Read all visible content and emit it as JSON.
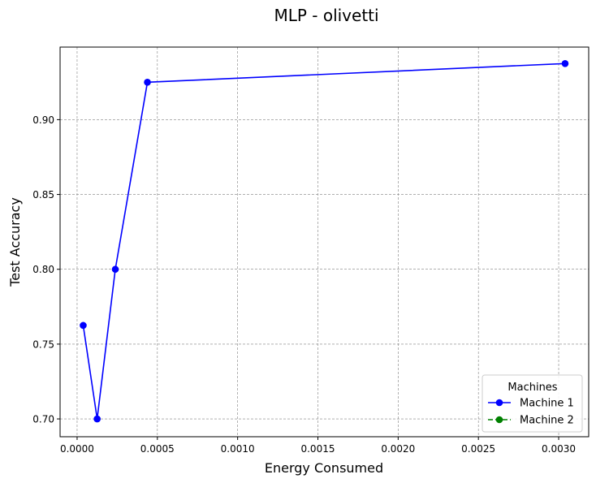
{
  "chart_data": {
    "type": "line",
    "title": "MLP - olivetti",
    "xlabel": "Energy Consumed",
    "ylabel": "Test Accuracy",
    "xlim": [
      -0.000106,
      0.003187
    ],
    "ylim": [
      0.6881,
      0.9485
    ],
    "x_ticks": [
      0.0,
      0.0005,
      0.001,
      0.0015,
      0.002,
      0.0025,
      0.003
    ],
    "x_tick_labels": [
      "0.0000",
      "0.0005",
      "0.0010",
      "0.0015",
      "0.0020",
      "0.0025",
      "0.0030"
    ],
    "y_ticks": [
      0.7,
      0.75,
      0.8,
      0.85,
      0.9
    ],
    "y_tick_labels": [
      "0.70",
      "0.75",
      "0.80",
      "0.85",
      "0.90"
    ],
    "grid": true,
    "legend": {
      "title": "Machines",
      "position": "lower-right"
    },
    "series": [
      {
        "name": "Machine 1",
        "color": "#0000ff",
        "line_style": "solid",
        "marker": "circle",
        "points": [
          {
            "x": 3.8e-05,
            "y": 0.7625
          },
          {
            "x": 0.000125,
            "y": 0.7
          },
          {
            "x": 0.000238,
            "y": 0.8
          },
          {
            "x": 0.000438,
            "y": 0.925
          },
          {
            "x": 0.00304,
            "y": 0.9375
          }
        ]
      },
      {
        "name": "Machine 2",
        "color": "#008000",
        "line_style": "dashed",
        "marker": "circle",
        "points": []
      }
    ]
  }
}
